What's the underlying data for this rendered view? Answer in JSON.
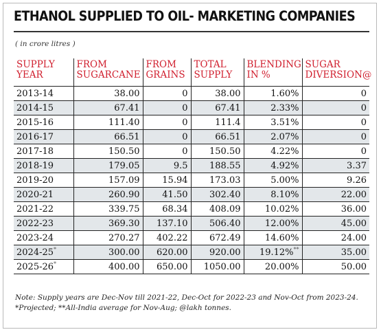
{
  "title": "ETHANOL SUPPLIED TO OIL- MARKETING COMPANIES",
  "unit": "( in crore litres )",
  "headers": [
    [
      "SUPPLY",
      "YEAR"
    ],
    [
      "FROM",
      "SUGARCANE"
    ],
    [
      "FROM",
      "GRAINS"
    ],
    [
      "TOTAL",
      "SUPPLY"
    ],
    [
      "BLENDING",
      "IN %"
    ],
    [
      "SUGAR",
      "DIVERSION@"
    ]
  ],
  "rows": [
    {
      "year": "2013-14",
      "year_mark": "",
      "sugarcane": "38.00",
      "grains": "0",
      "total": "38.00",
      "blending": "1.60%",
      "blending_mark": "",
      "diversion": "0"
    },
    {
      "year": "2014-15",
      "year_mark": "",
      "sugarcane": "67.41",
      "grains": "0",
      "total": "67.41",
      "blending": "2.33%",
      "blending_mark": "",
      "diversion": "0"
    },
    {
      "year": "2015-16",
      "year_mark": "",
      "sugarcane": "111.40",
      "grains": "0",
      "total": "111.4",
      "blending": "3.51%",
      "blending_mark": "",
      "diversion": "0"
    },
    {
      "year": "2016-17",
      "year_mark": "",
      "sugarcane": "66.51",
      "grains": "0",
      "total": "66.51",
      "blending": "2.07%",
      "blending_mark": "",
      "diversion": "0"
    },
    {
      "year": "2017-18",
      "year_mark": "",
      "sugarcane": "150.50",
      "grains": "0",
      "total": "150.50",
      "blending": "4.22%",
      "blending_mark": "",
      "diversion": "0"
    },
    {
      "year": "2018-19",
      "year_mark": "",
      "sugarcane": "179.05",
      "grains": "9.5",
      "total": "188.55",
      "blending": "4.92%",
      "blending_mark": "",
      "diversion": "3.37"
    },
    {
      "year": "2019-20",
      "year_mark": "",
      "sugarcane": "157.09",
      "grains": "15.94",
      "total": "173.03",
      "blending": "5.00%",
      "blending_mark": "",
      "diversion": "9.26"
    },
    {
      "year": "2020-21",
      "year_mark": "",
      "sugarcane": "260.90",
      "grains": "41.50",
      "total": "302.40",
      "blending": "8.10%",
      "blending_mark": "",
      "diversion": "22.00"
    },
    {
      "year": "2021-22",
      "year_mark": "",
      "sugarcane": "339.75",
      "grains": "68.34",
      "total": "408.09",
      "blending": "10.02%",
      "blending_mark": "",
      "diversion": "36.00"
    },
    {
      "year": "2022-23",
      "year_mark": "",
      "sugarcane": "369.30",
      "grains": "137.10",
      "total": "506.40",
      "blending": "12.00%",
      "blending_mark": "",
      "diversion": "45.00"
    },
    {
      "year": "2023-24",
      "year_mark": "",
      "sugarcane": "270.27",
      "grains": "402.22",
      "total": "672.49",
      "blending": "14.60%",
      "blending_mark": "",
      "diversion": "24.00"
    },
    {
      "year": "2024-25",
      "year_mark": "*",
      "sugarcane": "300.00",
      "grains": "620.00",
      "total": "920.00",
      "blending": "19.12%",
      "blending_mark": "**",
      "diversion": "35.00"
    },
    {
      "year": "2025-26",
      "year_mark": "*",
      "sugarcane": "400.00",
      "grains": "650.00",
      "total": "1050.00",
      "blending": "20.00%",
      "blending_mark": "",
      "diversion": "50.00"
    }
  ],
  "note_line1": "Note: Supply years are Dec-Nov till 2021-22, Dec-Oct for 2022-23 and Nov-Oct from 2023-24.",
  "note_line2": "*Projected; **All-India average for Nov-Aug; @lakh tonnes."
}
